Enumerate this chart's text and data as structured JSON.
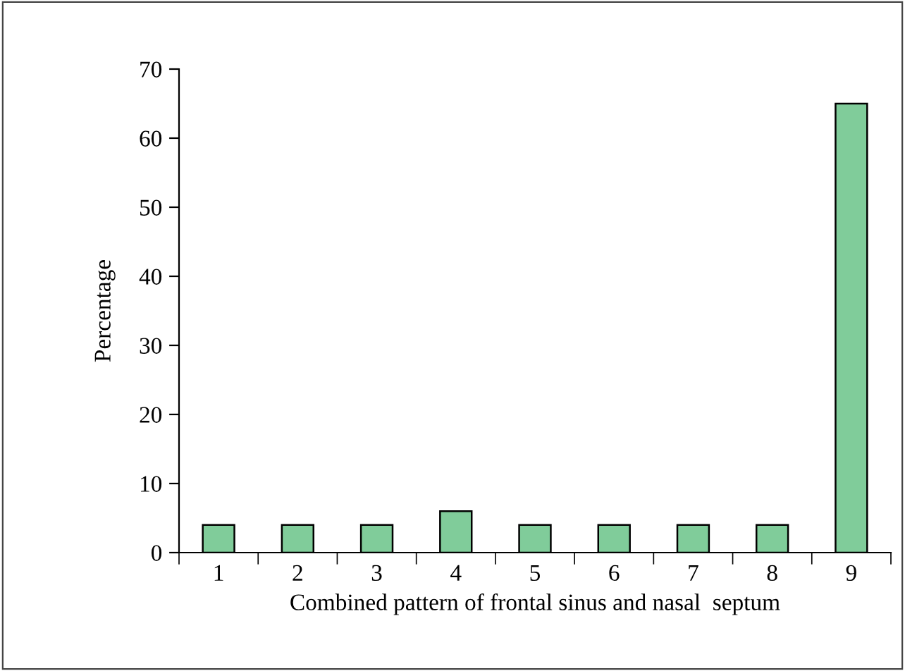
{
  "chart_data": {
    "type": "bar",
    "xlabel": "Combined pattern of frontal sinus and nasal  septum",
    "ylabel": "Percentage",
    "categories": [
      "1",
      "2",
      "3",
      "4",
      "5",
      "6",
      "7",
      "8",
      "9"
    ],
    "values": [
      4,
      4,
      4,
      6,
      4,
      4,
      4,
      4,
      65
    ],
    "color": "#80cc9a",
    "ylim": [
      0,
      70
    ],
    "yticks": [
      0,
      10,
      20,
      30,
      40,
      50,
      60,
      70
    ],
    "grid": false,
    "legend": false
  }
}
